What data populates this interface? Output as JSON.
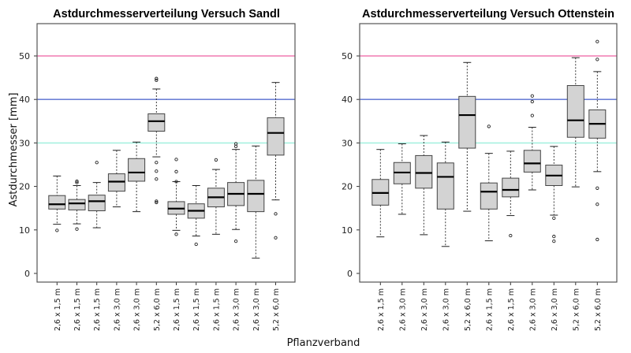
{
  "chart_data": [
    {
      "type": "box",
      "title": "Astdurchmesser­verteilung Versuch Sandl",
      "ylabel": "Astdurchmesser [mm]",
      "xlabel": "Pflanzverband",
      "ylim": [
        -1,
        56
      ],
      "yticks": [
        0,
        10,
        20,
        30,
        40,
        50
      ],
      "reference_lines": [
        {
          "y": 50,
          "color": "#f07ab0"
        },
        {
          "y": 40,
          "color": "#6f82d6"
        },
        {
          "y": 30,
          "color": "#a6f0e0"
        }
      ],
      "categories": [
        "2,6 x 1,5 m",
        "2,6 x 1,5 m",
        "2,6 x 1,5 m",
        "2,6 x 3,0 m",
        "2,6 x 3,0 m",
        "5,2 x 6,0 m",
        "2,6 x 1,5 m",
        "2,6 x 1,5 m",
        "2,6 x 1,5 m",
        "2,6 x 3,0 m",
        "2,6 x 3,0 m",
        "5,2 x 6,0 m"
      ],
      "boxes": [
        {
          "low": 11.3,
          "q1": 14.8,
          "median": 15.9,
          "q3": 17.9,
          "high": 22.4,
          "outliers": [
            9.9
          ]
        },
        {
          "low": 11.4,
          "q1": 14.6,
          "median": 16.1,
          "q3": 17.0,
          "high": 20.2,
          "outliers": [
            21.2,
            20.9,
            10.2
          ]
        },
        {
          "low": 10.5,
          "q1": 14.4,
          "median": 16.6,
          "q3": 18.0,
          "high": 20.9,
          "outliers": [
            25.5
          ]
        },
        {
          "low": 15.3,
          "q1": 18.9,
          "median": 21.1,
          "q3": 22.9,
          "high": 28.3,
          "outliers": []
        },
        {
          "low": 14.2,
          "q1": 21.2,
          "median": 23.2,
          "q3": 26.4,
          "high": 30.2,
          "outliers": []
        },
        {
          "low": 26.8,
          "q1": 32.7,
          "median": 35.0,
          "q3": 36.7,
          "high": 42.4,
          "outliers": [
            44.8,
            44.4,
            25.5,
            23.5,
            21.7,
            16.6,
            16.3
          ]
        },
        {
          "low": 9.9,
          "q1": 13.6,
          "median": 14.9,
          "q3": 16.5,
          "high": 21.1,
          "outliers": [
            26.2,
            23.4,
            21.1,
            9.0
          ]
        },
        {
          "low": 8.6,
          "q1": 12.7,
          "median": 14.4,
          "q3": 16.0,
          "high": 20.2,
          "outliers": [
            6.7
          ]
        },
        {
          "low": 9.0,
          "q1": 15.3,
          "median": 17.5,
          "q3": 19.6,
          "high": 23.9,
          "outliers": [
            26.1
          ]
        },
        {
          "low": 10.1,
          "q1": 15.6,
          "median": 18.3,
          "q3": 20.9,
          "high": 28.5,
          "outliers": [
            29.8,
            29.2,
            7.4
          ]
        },
        {
          "low": 3.5,
          "q1": 14.2,
          "median": 18.3,
          "q3": 21.4,
          "high": 29.3,
          "outliers": []
        },
        {
          "low": 16.9,
          "q1": 27.2,
          "median": 32.3,
          "q3": 35.8,
          "high": 43.9,
          "outliers": [
            13.7,
            8.2
          ]
        }
      ]
    },
    {
      "type": "box",
      "title": "Astdurchmesserverteilung Versuch Ottenstein",
      "ylim": [
        -1,
        56
      ],
      "yticks": [
        0,
        10,
        20,
        30,
        40,
        50
      ],
      "reference_lines": [
        {
          "y": 50,
          "color": "#f07ab0"
        },
        {
          "y": 40,
          "color": "#6f82d6"
        },
        {
          "y": 30,
          "color": "#a6f0e0"
        }
      ],
      "categories": [
        "2,6 x 1,5 m",
        "2,6 x 3,0 m",
        "2,6 x 3,0 m",
        "2,6 x 3,0 m",
        "5,2 x 6,0 m",
        "2,6 x 1,5 m",
        "2,6 x 1,5 m",
        "2,6 x 3,0 m",
        "2,6 x 3,0 m",
        "5,2 x 6,0 m",
        "5,2 x 6,0 m"
      ],
      "boxes": [
        {
          "low": 8.4,
          "q1": 15.7,
          "median": 18.5,
          "q3": 21.6,
          "high": 28.5,
          "outliers": []
        },
        {
          "low": 13.6,
          "q1": 20.6,
          "median": 23.2,
          "q3": 25.5,
          "high": 29.8,
          "outliers": []
        },
        {
          "low": 8.9,
          "q1": 19.6,
          "median": 23.1,
          "q3": 27.1,
          "high": 31.7,
          "outliers": []
        },
        {
          "low": 6.2,
          "q1": 14.8,
          "median": 22.2,
          "q3": 25.4,
          "high": 30.2,
          "outliers": []
        },
        {
          "low": 14.3,
          "q1": 28.8,
          "median": 36.4,
          "q3": 40.7,
          "high": 48.5,
          "outliers": []
        },
        {
          "low": 7.5,
          "q1": 14.8,
          "median": 18.8,
          "q3": 20.8,
          "high": 27.6,
          "outliers": [
            33.8
          ]
        },
        {
          "low": 13.3,
          "q1": 17.6,
          "median": 19.2,
          "q3": 21.9,
          "high": 28.1,
          "outliers": [
            8.7
          ]
        },
        {
          "low": 19.2,
          "q1": 23.3,
          "median": 25.3,
          "q3": 28.3,
          "high": 33.6,
          "outliers": [
            40.8,
            39.5,
            36.3
          ]
        },
        {
          "low": 13.4,
          "q1": 20.2,
          "median": 22.5,
          "q3": 24.9,
          "high": 29.2,
          "outliers": [
            12.7,
            8.5,
            7.4
          ]
        },
        {
          "low": 19.9,
          "q1": 31.3,
          "median": 35.2,
          "q3": 43.2,
          "high": 49.6,
          "outliers": []
        },
        {
          "low": 23.4,
          "q1": 31.1,
          "median": 34.4,
          "q3": 37.6,
          "high": 46.4,
          "outliers": [
            53.3,
            49.2,
            19.6,
            15.9,
            7.8
          ]
        }
      ]
    }
  ]
}
